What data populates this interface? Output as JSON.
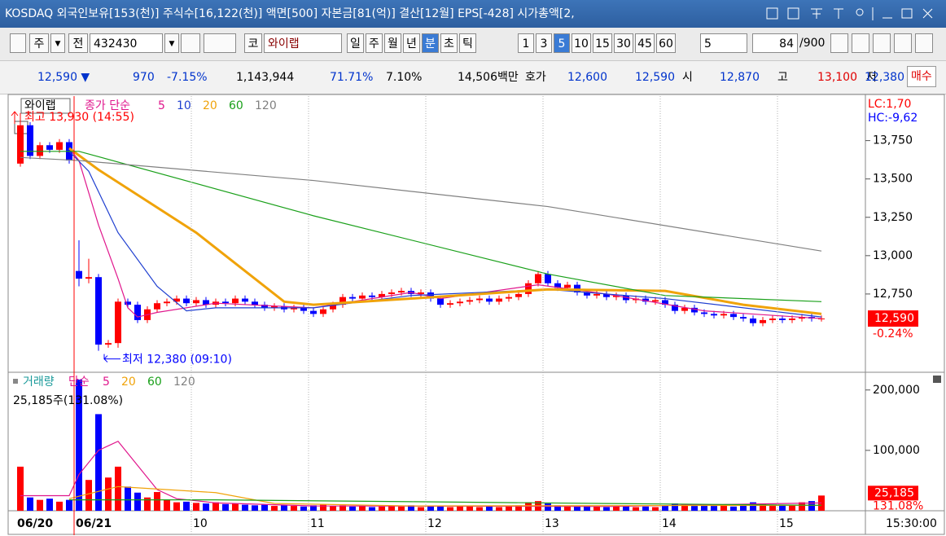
{
  "window": {
    "title": "KOSDAQ 외국인보유[153(천)] 주식수[16,122(천)] 액면[500] 자본금[81(억)] 결산[12월] EPS[-428] 시가총액[2,"
  },
  "toolbar": {
    "period_main": "주",
    "market": "전",
    "code": "432430",
    "market_type": "코",
    "name": "와이랩",
    "periods": [
      "일",
      "주",
      "월",
      "년",
      "분",
      "초",
      "틱"
    ],
    "intervals": [
      "1",
      "3",
      "5",
      "10",
      "15",
      "30",
      "45",
      "60"
    ],
    "count_select": "5",
    "count": "84",
    "count_max": "/900"
  },
  "quote_bar": {
    "price": "12,590 ▼",
    "change": "970",
    "change_pct": "-7.15%",
    "volume": "1,143,944",
    "pct1": "71.71%",
    "pct2": "7.10%",
    "amount": "14,506백만",
    "ask_label": "호가",
    "ask": "12,600",
    "bid": "12,590",
    "open_label": "시",
    "open": "12,870",
    "high_label": "고",
    "high": "13,100",
    "low_label": "저",
    "low": "12,380",
    "order": "매수"
  },
  "chart_data": [
    {
      "type": "candlestick",
      "name_label": "와이랩",
      "legend_prefix": "종가 단순",
      "up_color": "#ff0000",
      "down_color": "#0000ff",
      "open": [
        13600,
        13850,
        13650,
        13720,
        13690,
        13740,
        12900,
        12850,
        12860,
        12420,
        12430,
        12700,
        12680,
        12580,
        12650,
        12690,
        12700,
        12720,
        12690,
        12710,
        12680,
        12700,
        12690,
        12720,
        12700,
        12680,
        12660,
        12670,
        12650,
        12660,
        12640,
        12620,
        12650,
        12680,
        12730,
        12720,
        12740,
        12730,
        12750,
        12760,
        12770,
        12750,
        12760,
        12720,
        12680,
        12690,
        12700,
        12710,
        12720,
        12700,
        12720,
        12730,
        12750,
        12820,
        12880,
        12820,
        12790,
        12810,
        12760,
        12740,
        12750,
        12730,
        12740,
        12710,
        12720,
        12700,
        12710,
        12680,
        12640,
        12660,
        12630,
        12620,
        12610,
        12620,
        12600,
        12590,
        12560,
        12580,
        12590,
        12580,
        12590,
        12600,
        12590
      ],
      "high": [
        13930,
        13870,
        13740,
        13740,
        13760,
        13760,
        13100,
        12980,
        12880,
        12450,
        12720,
        12720,
        12700,
        12670,
        12710,
        12720,
        12740,
        12740,
        12730,
        12730,
        12720,
        12720,
        12740,
        12740,
        12720,
        12700,
        12690,
        12690,
        12680,
        12680,
        12660,
        12670,
        12700,
        12750,
        12750,
        12760,
        12760,
        12770,
        12780,
        12790,
        12790,
        12780,
        12780,
        12740,
        12710,
        12720,
        12730,
        12740,
        12740,
        12740,
        12750,
        12770,
        12840,
        12900,
        12900,
        12840,
        12830,
        12830,
        12780,
        12770,
        12770,
        12760,
        12760,
        12740,
        12740,
        12730,
        12730,
        12700,
        12680,
        12680,
        12650,
        12640,
        12640,
        12640,
        12620,
        12610,
        12600,
        12610,
        12610,
        12610,
        12620,
        12620,
        12610
      ],
      "low": [
        13580,
        13630,
        13630,
        13670,
        13670,
        13600,
        12800,
        12820,
        12380,
        12400,
        12400,
        12660,
        12560,
        12560,
        12630,
        12670,
        12680,
        12670,
        12670,
        12660,
        12660,
        12670,
        12670,
        12680,
        12660,
        12640,
        12640,
        12630,
        12630,
        12620,
        12600,
        12600,
        12630,
        12660,
        12700,
        12700,
        12710,
        12710,
        12730,
        12740,
        12730,
        12730,
        12700,
        12660,
        12660,
        12670,
        12680,
        12690,
        12680,
        12680,
        12700,
        12710,
        12730,
        12800,
        12800,
        12770,
        12770,
        12740,
        12720,
        12720,
        12710,
        12710,
        12690,
        12690,
        12680,
        12680,
        12660,
        12620,
        12620,
        12610,
        12600,
        12590,
        12590,
        12580,
        12570,
        12540,
        12540,
        12560,
        12560,
        12560,
        12570,
        12570,
        12570
      ],
      "close": [
        13850,
        13650,
        13720,
        13690,
        13740,
        13620,
        12850,
        12860,
        12420,
        12430,
        12700,
        12680,
        12580,
        12650,
        12690,
        12700,
        12720,
        12690,
        12710,
        12680,
        12700,
        12690,
        12720,
        12700,
        12680,
        12660,
        12670,
        12650,
        12660,
        12640,
        12620,
        12650,
        12680,
        12730,
        12720,
        12740,
        12730,
        12750,
        12760,
        12770,
        12750,
        12760,
        12720,
        12680,
        12690,
        12700,
        12710,
        12720,
        12700,
        12720,
        12730,
        12750,
        12820,
        12880,
        12820,
        12790,
        12810,
        12760,
        12740,
        12750,
        12730,
        12740,
        12710,
        12720,
        12700,
        12710,
        12680,
        12640,
        12660,
        12630,
        12620,
        12610,
        12620,
        12600,
        12590,
        12560,
        12580,
        12590,
        12580,
        12590,
        12600,
        12590,
        12590
      ],
      "ylim": [
        12245,
        14040
      ],
      "yticks": [
        {
          "value": 12750,
          "label": "12,750"
        },
        {
          "value": 13000,
          "label": "13,000"
        },
        {
          "value": 13250,
          "label": "13,250"
        },
        {
          "value": 13500,
          "label": "13,500"
        },
        {
          "value": 13750,
          "label": "13,750"
        }
      ],
      "series": [
        {
          "name": "5",
          "color": "#e0168c",
          "x": [
            5,
            6,
            8,
            10,
            11,
            12,
            14,
            20,
            30,
            40,
            43,
            53,
            60,
            70,
            82
          ],
          "values": [
            13700,
            13620,
            13200,
            12850,
            12660,
            12600,
            12630,
            12690,
            12660,
            12760,
            12720,
            12810,
            12750,
            12640,
            12590
          ]
        },
        {
          "name": "10",
          "color": "#1f3fd0",
          "x": [
            5,
            7,
            10,
            14,
            17,
            20,
            30,
            40,
            54,
            66,
            82
          ],
          "values": [
            13680,
            13550,
            13150,
            12800,
            12640,
            12660,
            12660,
            12740,
            12780,
            12720,
            12600
          ]
        },
        {
          "name": "20",
          "color": "#f0a30a",
          "bold": true,
          "x": [
            5,
            8,
            18,
            24,
            27,
            30,
            40,
            54,
            66,
            74,
            82
          ],
          "values": [
            13700,
            13560,
            13150,
            12850,
            12700,
            12680,
            12720,
            12780,
            12770,
            12680,
            12620
          ]
        },
        {
          "name": "60",
          "color": "#1aa01a",
          "x": [
            0,
            6,
            30,
            54,
            66,
            82
          ],
          "values": [
            13680,
            13680,
            13260,
            12880,
            12740,
            12700
          ]
        },
        {
          "name": "120",
          "color": "#808080",
          "x": [
            0,
            6,
            30,
            54,
            82
          ],
          "values": [
            13640,
            13620,
            13490,
            13320,
            13030
          ]
        }
      ],
      "high_note": "최고 13,930 (14:55)",
      "low_note": "최저 12,380 (09:10)",
      "side_labels": [
        "LC:1,70",
        "HC:-9,62"
      ],
      "last_price": {
        "value": 12590,
        "label": "12,590"
      },
      "last_change": "-0.24%"
    },
    {
      "type": "bar",
      "title": "거래량",
      "legend_prefix": "단순",
      "title_color": "#1a9a9a",
      "categories": [
        "06/20",
        null,
        null,
        null,
        null,
        null,
        "06/21",
        null,
        null,
        null,
        null,
        null,
        null,
        null,
        null,
        null,
        null,
        null,
        "10",
        null,
        null,
        null,
        null,
        null,
        null,
        null,
        null,
        null,
        null,
        null,
        "11",
        null,
        null,
        null,
        null,
        null,
        null,
        null,
        null,
        null,
        null,
        null,
        "12",
        null,
        null,
        null,
        null,
        null,
        null,
        null,
        null,
        null,
        null,
        null,
        "13",
        null,
        null,
        null,
        null,
        null,
        null,
        null,
        null,
        null,
        null,
        null,
        "14",
        null,
        null,
        null,
        null,
        null,
        null,
        null,
        null,
        null,
        null,
        null,
        "15",
        null,
        null,
        null,
        null
      ],
      "values": [
        73000,
        22000,
        18000,
        20000,
        15000,
        18000,
        217000,
        51000,
        160000,
        55000,
        73000,
        40000,
        30000,
        22000,
        31000,
        18000,
        14000,
        15000,
        13000,
        12000,
        14000,
        11000,
        12000,
        10000,
        9000,
        10000,
        8000,
        9000,
        8000,
        7000,
        9000,
        10000,
        8000,
        9000,
        7000,
        8000,
        6000,
        7000,
        8000,
        7000,
        9000,
        6000,
        8000,
        7000,
        6000,
        8000,
        7000,
        6000,
        7000,
        6000,
        8000,
        9000,
        14000,
        16000,
        12000,
        9000,
        8000,
        7000,
        8000,
        7000,
        6000,
        7000,
        8000,
        6000,
        7000,
        6000,
        9000,
        12000,
        10000,
        8000,
        9000,
        8000,
        10000,
        7000,
        9000,
        14000,
        12000,
        8000,
        10000,
        9000,
        14000,
        16000,
        25185
      ],
      "ylim": [
        0,
        228000
      ],
      "yticks": [
        {
          "value": 100000,
          "label": "100,000"
        },
        {
          "value": 200000,
          "label": "200,000"
        }
      ],
      "series": [
        {
          "name": "5",
          "color": "#e0168c",
          "x": [
            0,
            5,
            6,
            8,
            10,
            12,
            14,
            16,
            20,
            30,
            60,
            82
          ],
          "values": [
            25000,
            25000,
            60000,
            100000,
            115000,
            75000,
            35000,
            20000,
            13000,
            8000,
            7000,
            13000
          ]
        },
        {
          "name": "20",
          "color": "#f0a30a",
          "x": [
            5,
            10,
            20,
            26,
            40,
            82
          ],
          "values": [
            20000,
            40000,
            30000,
            12000,
            8000,
            9000
          ]
        },
        {
          "name": "60",
          "color": "#1aa01a",
          "x": [
            5,
            20,
            40,
            60,
            82
          ],
          "values": [
            18000,
            18000,
            15000,
            12000,
            9000
          ]
        },
        {
          "name": "120",
          "color": "#808080",
          "x": [],
          "values": []
        }
      ],
      "note": "25,185주(131.08%)",
      "last_value": {
        "value": 25185,
        "label": "25,185"
      },
      "last_pct": "131.08%",
      "day_line_color": "#ff0000",
      "time_label": "15:30:00"
    }
  ]
}
